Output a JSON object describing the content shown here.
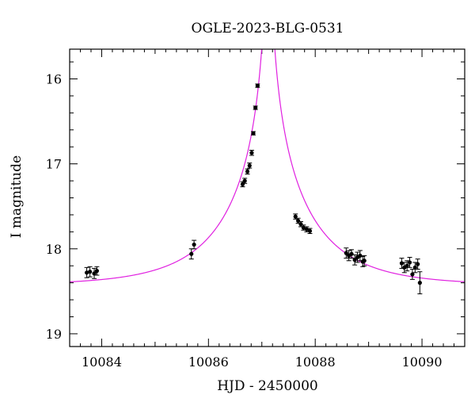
{
  "chart_data": {
    "type": "scatter",
    "title": "OGLE-2023-BLG-0531",
    "xlabel": "HJD - 2450000",
    "ylabel": "I magnitude",
    "xlim": [
      10083.4,
      10090.8
    ],
    "ylim": [
      19.15,
      15.65
    ],
    "y_inverted": true,
    "grid": false,
    "x_major_ticks": [
      10084,
      10086,
      10088,
      10090
    ],
    "y_major_ticks": [
      16,
      17,
      18,
      19
    ],
    "x_tick_labels": [
      "10084",
      "10086",
      "10088",
      "10090"
    ],
    "y_tick_labels": [
      "16",
      "17",
      "18",
      "19"
    ],
    "colors": {
      "model": "#e020e0",
      "points": "#000000"
    },
    "model": {
      "t0": 10087.12,
      "tE": 1.6,
      "u0": 0.006,
      "baseline_mag": 18.43
    },
    "points": [
      {
        "x": 10083.72,
        "y": 18.28,
        "err": 0.06
      },
      {
        "x": 10083.78,
        "y": 18.27,
        "err": 0.06
      },
      {
        "x": 10083.86,
        "y": 18.29,
        "err": 0.06
      },
      {
        "x": 10083.91,
        "y": 18.26,
        "err": 0.05
      },
      {
        "x": 10085.68,
        "y": 18.06,
        "err": 0.06
      },
      {
        "x": 10085.73,
        "y": 17.95,
        "err": 0.05
      },
      {
        "x": 10086.64,
        "y": 17.24,
        "err": 0.03
      },
      {
        "x": 10086.68,
        "y": 17.2,
        "err": 0.03
      },
      {
        "x": 10086.73,
        "y": 17.09,
        "err": 0.03
      },
      {
        "x": 10086.77,
        "y": 17.02,
        "err": 0.03
      },
      {
        "x": 10086.81,
        "y": 16.87,
        "err": 0.03
      },
      {
        "x": 10086.84,
        "y": 16.64,
        "err": 0.02
      },
      {
        "x": 10086.88,
        "y": 16.34,
        "err": 0.02
      },
      {
        "x": 10086.92,
        "y": 16.08,
        "err": 0.02
      },
      {
        "x": 10087.63,
        "y": 17.62,
        "err": 0.03
      },
      {
        "x": 10087.68,
        "y": 17.67,
        "err": 0.03
      },
      {
        "x": 10087.73,
        "y": 17.71,
        "err": 0.03
      },
      {
        "x": 10087.78,
        "y": 17.75,
        "err": 0.03
      },
      {
        "x": 10087.84,
        "y": 17.77,
        "err": 0.03
      },
      {
        "x": 10087.9,
        "y": 17.79,
        "err": 0.03
      },
      {
        "x": 10088.58,
        "y": 18.05,
        "err": 0.06
      },
      {
        "x": 10088.63,
        "y": 18.08,
        "err": 0.06
      },
      {
        "x": 10088.68,
        "y": 18.06,
        "err": 0.05
      },
      {
        "x": 10088.74,
        "y": 18.13,
        "err": 0.06
      },
      {
        "x": 10088.79,
        "y": 18.1,
        "err": 0.06
      },
      {
        "x": 10088.84,
        "y": 18.08,
        "err": 0.06
      },
      {
        "x": 10088.89,
        "y": 18.15,
        "err": 0.06
      },
      {
        "x": 10088.92,
        "y": 18.14,
        "err": 0.06
      },
      {
        "x": 10089.62,
        "y": 18.17,
        "err": 0.06
      },
      {
        "x": 10089.67,
        "y": 18.22,
        "err": 0.06
      },
      {
        "x": 10089.72,
        "y": 18.2,
        "err": 0.06
      },
      {
        "x": 10089.77,
        "y": 18.16,
        "err": 0.06
      },
      {
        "x": 10089.82,
        "y": 18.3,
        "err": 0.06
      },
      {
        "x": 10089.87,
        "y": 18.22,
        "err": 0.06
      },
      {
        "x": 10089.92,
        "y": 18.18,
        "err": 0.06
      },
      {
        "x": 10089.96,
        "y": 18.4,
        "err": 0.13
      }
    ]
  }
}
